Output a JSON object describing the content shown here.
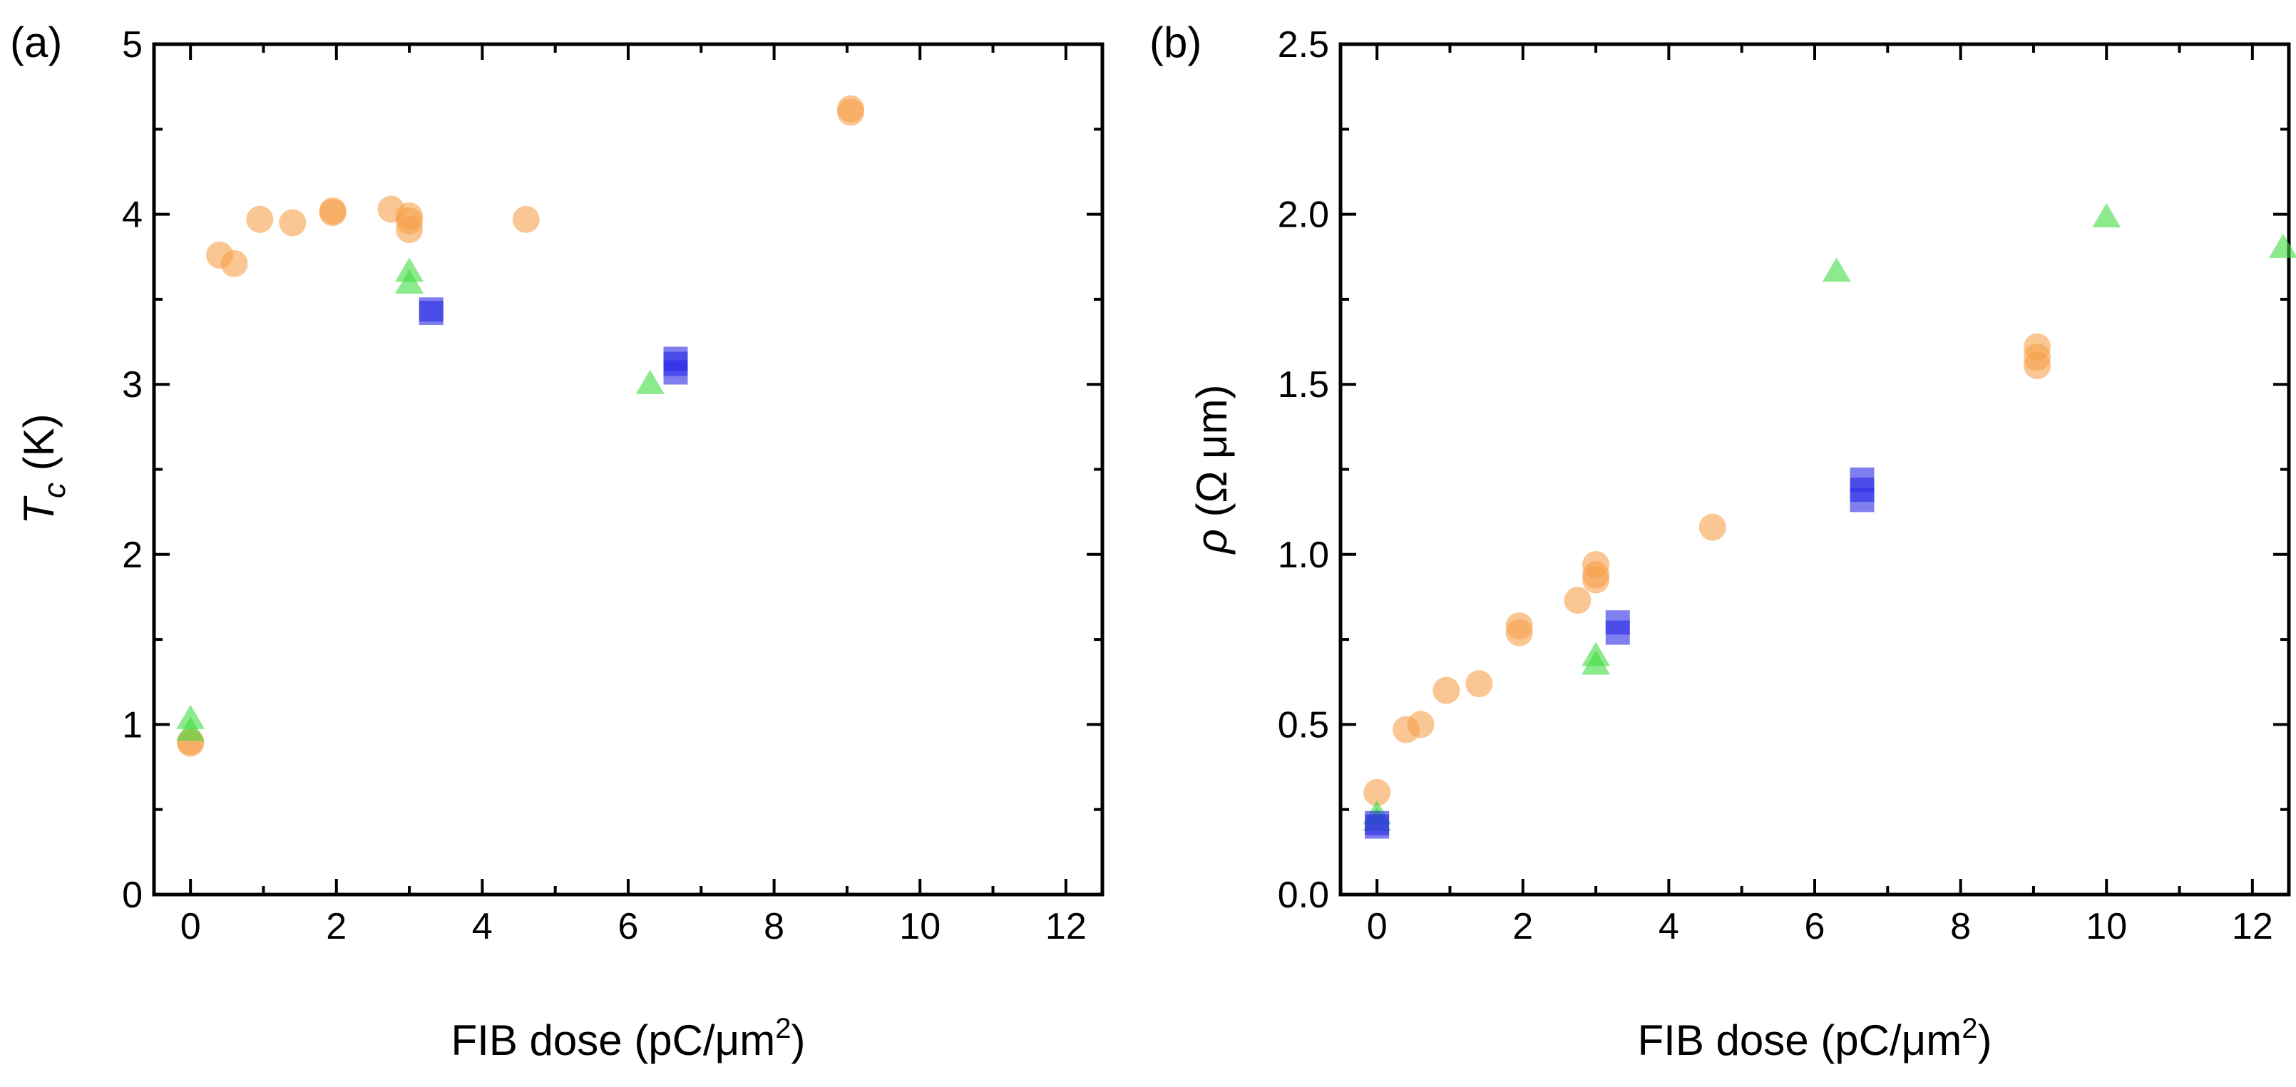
{
  "chart_data": [
    {
      "type": "scatter",
      "panel_label": "(a)",
      "xlabel": {
        "prefix": "FIB dose (pC/",
        "mu": "μ",
        "unit": "m",
        "sup": "2",
        "suffix": ")"
      },
      "ylabel": {
        "symbol": "T",
        "sub": "c",
        "unit": " (K)"
      },
      "xlim": [
        -0.5,
        12.5
      ],
      "ylim": [
        0,
        5
      ],
      "xticks": [
        "0",
        "2",
        "4",
        "6",
        "8",
        "10",
        "12"
      ],
      "yticks": [
        "0",
        "1",
        "2",
        "3",
        "4",
        "5"
      ],
      "series": [
        {
          "name": "orange circles",
          "marker": "circle",
          "color": "#f7a04b",
          "points": [
            [
              0,
              0.89
            ],
            [
              0,
              0.9
            ],
            [
              0.4,
              3.76
            ],
            [
              0.6,
              3.71
            ],
            [
              0.95,
              3.97
            ],
            [
              1.4,
              3.95
            ],
            [
              1.95,
              4.01
            ],
            [
              1.95,
              4.02
            ],
            [
              2.75,
              4.03
            ],
            [
              3.0,
              3.91
            ],
            [
              3.0,
              3.96
            ],
            [
              3.0,
              3.99
            ],
            [
              4.6,
              3.97
            ],
            [
              9.05,
              4.6
            ],
            [
              9.05,
              4.62
            ]
          ]
        },
        {
          "name": "green triangles",
          "marker": "triangle",
          "color": "#3fdc3f",
          "points": [
            [
              0,
              0.96
            ],
            [
              0,
              1.03
            ],
            [
              3.0,
              3.59
            ],
            [
              3.0,
              3.66
            ],
            [
              6.3,
              3.0
            ]
          ]
        },
        {
          "name": "blue squares",
          "marker": "square",
          "color": "#2a2ae6",
          "points": [
            [
              3.3,
              3.42
            ],
            [
              3.3,
              3.44
            ],
            [
              6.65,
              3.07
            ],
            [
              6.65,
              3.12
            ],
            [
              6.65,
              3.15
            ]
          ]
        }
      ]
    },
    {
      "type": "scatter",
      "panel_label": "(b)",
      "xlabel": {
        "prefix": "FIB dose (pC/",
        "mu": "μ",
        "unit": "m",
        "sup": "2",
        "suffix": ")"
      },
      "ylabel": {
        "symbol": "ρ",
        "unit": " (Ω μm)"
      },
      "xlim": [
        -0.5,
        12.5
      ],
      "ylim": [
        0,
        2.5
      ],
      "xticks": [
        "0",
        "2",
        "4",
        "6",
        "8",
        "10",
        "12"
      ],
      "yticks": [
        "0.0",
        "0.5",
        "1.0",
        "1.5",
        "2.0",
        "2.5"
      ],
      "series": [
        {
          "name": "orange circles",
          "marker": "circle",
          "color": "#f7a04b",
          "points": [
            [
              0,
              0.3
            ],
            [
              0.4,
              0.485
            ],
            [
              0.6,
              0.5
            ],
            [
              0.95,
              0.6
            ],
            [
              1.4,
              0.62
            ],
            [
              1.95,
              0.77
            ],
            [
              1.95,
              0.79
            ],
            [
              2.75,
              0.865
            ],
            [
              3.0,
              0.925
            ],
            [
              3.0,
              0.94
            ],
            [
              3.0,
              0.97
            ],
            [
              4.6,
              1.08
            ],
            [
              9.05,
              1.555
            ],
            [
              9.05,
              1.58
            ],
            [
              9.05,
              1.61
            ]
          ]
        },
        {
          "name": "green triangles",
          "marker": "triangle",
          "color": "#3fdc3f",
          "points": [
            [
              0,
              0.215
            ],
            [
              0,
              0.235
            ],
            [
              3.0,
              0.675
            ],
            [
              3.0,
              0.7
            ],
            [
              6.3,
              1.83
            ],
            [
              10.0,
              1.99
            ],
            [
              12.5,
              1.9
            ]
          ]
        },
        {
          "name": "blue squares",
          "marker": "square",
          "color": "#2a2ae6",
          "points": [
            [
              0,
              0.2
            ],
            [
              0,
              0.21
            ],
            [
              3.3,
              0.77
            ],
            [
              3.3,
              0.8
            ],
            [
              6.65,
              1.16
            ],
            [
              6.65,
              1.19
            ],
            [
              6.65,
              1.22
            ]
          ]
        }
      ]
    }
  ]
}
